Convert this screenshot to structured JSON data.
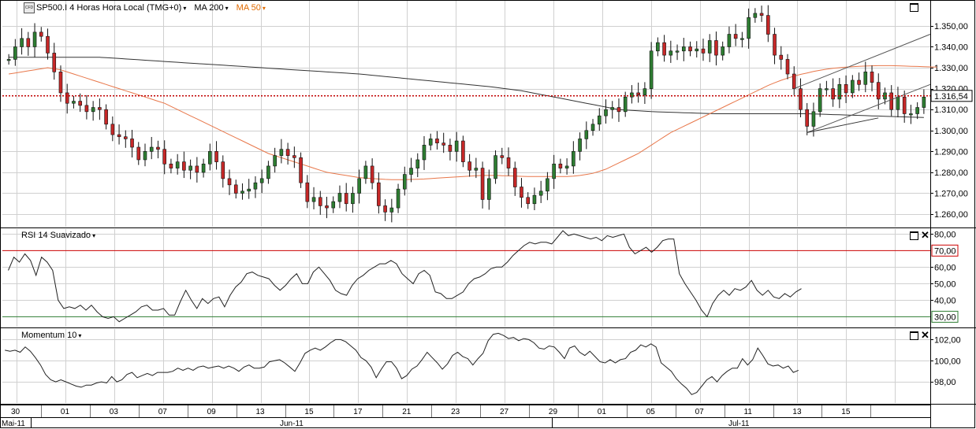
{
  "header": {
    "symbol": "SP500.I 4 Horas Hora Local (TMG+0)",
    "ma200_label": "MA 200",
    "ma50_label": "MA 50",
    "caret": "▾"
  },
  "colors": {
    "up": "#2e7d32",
    "down": "#c62828",
    "ma200": "#333333",
    "ma50": "#e8774a",
    "last_price": "#c00000",
    "grid": "#d0d0d0",
    "rsi_upper": "#cc0000",
    "rsi_lower": "#2e7d32"
  },
  "chart_data": [
    {
      "type": "candlestick",
      "title": "SP500.I 4 Horas Hora Local (TMG+0)",
      "ylim": [
        1254,
        1362
      ],
      "y_ticks": [
        "1.260,00",
        "1.270,00",
        "1.280,00",
        "1.290,00",
        "1.300,00",
        "1.310,00",
        "1.320,00",
        "1.330,00",
        "1.340,00",
        "1.350,00"
      ],
      "y_tick_values": [
        1260,
        1270,
        1280,
        1290,
        1300,
        1310,
        1320,
        1330,
        1340,
        1350
      ],
      "last_price": 1316.54,
      "last_price_label": "1.316,54",
      "close": [
        1334,
        1340,
        1344,
        1340,
        1347,
        1345,
        1337,
        1328,
        1318,
        1313,
        1314,
        1312,
        1309,
        1311,
        1310,
        1303,
        1298,
        1297,
        1296,
        1292,
        1286,
        1290,
        1292,
        1291,
        1284,
        1282,
        1285,
        1281,
        1283,
        1280,
        1284,
        1290,
        1285,
        1277,
        1274,
        1270,
        1271,
        1272,
        1275,
        1277,
        1283,
        1288,
        1291,
        1288,
        1287,
        1275,
        1266,
        1268,
        1264,
        1263,
        1266,
        1270,
        1265,
        1270,
        1277,
        1283,
        1275,
        1264,
        1261,
        1263,
        1272,
        1279,
        1282,
        1286,
        1293,
        1296,
        1294,
        1293,
        1290,
        1295,
        1285,
        1281,
        1282,
        1267,
        1277,
        1288,
        1287,
        1282,
        1273,
        1268,
        1265,
        1269,
        1271,
        1277,
        1284,
        1282,
        1283,
        1290,
        1296,
        1300,
        1303,
        1307,
        1310,
        1311,
        1309,
        1316,
        1318,
        1317,
        1320,
        1338,
        1342,
        1336,
        1338,
        1338,
        1340,
        1338,
        1339,
        1337,
        1343,
        1336,
        1340,
        1346,
        1344,
        1344,
        1354,
        1356,
        1355,
        1346,
        1336,
        1334,
        1327,
        1320,
        1310,
        1302,
        1309,
        1320,
        1320,
        1315,
        1322,
        1318,
        1324,
        1322,
        1328,
        1323,
        1315,
        1318,
        1310,
        1316,
        1308,
        1308,
        1311,
        1316
      ],
      "open": [
        1334,
        1334,
        1340,
        1344,
        1340,
        1347,
        1345,
        1337,
        1328,
        1318,
        1313,
        1314,
        1312,
        1309,
        1311,
        1310,
        1303,
        1298,
        1297,
        1296,
        1292,
        1286,
        1290,
        1292,
        1291,
        1284,
        1282,
        1285,
        1281,
        1283,
        1280,
        1284,
        1290,
        1285,
        1277,
        1274,
        1270,
        1271,
        1272,
        1275,
        1277,
        1283,
        1288,
        1291,
        1288,
        1287,
        1275,
        1266,
        1268,
        1264,
        1263,
        1266,
        1270,
        1265,
        1270,
        1277,
        1283,
        1275,
        1264,
        1261,
        1263,
        1272,
        1279,
        1282,
        1286,
        1293,
        1296,
        1294,
        1293,
        1290,
        1295,
        1285,
        1281,
        1282,
        1267,
        1277,
        1288,
        1287,
        1282,
        1273,
        1268,
        1265,
        1269,
        1271,
        1277,
        1284,
        1282,
        1283,
        1290,
        1296,
        1300,
        1303,
        1307,
        1310,
        1311,
        1309,
        1316,
        1318,
        1317,
        1320,
        1338,
        1342,
        1336,
        1338,
        1338,
        1340,
        1338,
        1339,
        1337,
        1343,
        1336,
        1340,
        1346,
        1344,
        1344,
        1354,
        1356,
        1355,
        1346,
        1336,
        1334,
        1327,
        1320,
        1310,
        1302,
        1309,
        1320,
        1320,
        1315,
        1322,
        1318,
        1324,
        1322,
        1328,
        1323,
        1315,
        1318,
        1310,
        1316,
        1308,
        1308,
        1311
      ],
      "ma200": [
        1335,
        1335,
        1335,
        1335,
        1335,
        1335,
        1335,
        1335,
        1335,
        1335,
        1335,
        1335,
        1335,
        1335,
        1335,
        1334.8,
        1334.6,
        1334.4,
        1334.2,
        1334,
        1333.8,
        1333.6,
        1333.4,
        1333.2,
        1333,
        1332.8,
        1332.6,
        1332.4,
        1332.2,
        1332,
        1331.8,
        1331.6,
        1331.4,
        1331.2,
        1331,
        1330.8,
        1330.6,
        1330.4,
        1330.2,
        1330,
        1329.8,
        1329.6,
        1329.4,
        1329.2,
        1329,
        1328.8,
        1328.6,
        1328.4,
        1328.2,
        1328,
        1327.8,
        1327.6,
        1327.4,
        1327.2,
        1327,
        1326.7,
        1326.4,
        1326.1,
        1325.8,
        1325.5,
        1325.2,
        1324.9,
        1324.6,
        1324.3,
        1324,
        1323.7,
        1323.4,
        1323.1,
        1322.8,
        1322.5,
        1322.2,
        1321.9,
        1321.6,
        1321.3,
        1321,
        1320.6,
        1320.2,
        1319.8,
        1319.4,
        1319,
        1318.4,
        1317.8,
        1317.2,
        1316.6,
        1316,
        1315.4,
        1314.8,
        1314.2,
        1313.6,
        1313,
        1312.4,
        1311.8,
        1311.2,
        1310.6,
        1310,
        1309.8,
        1309.6,
        1309.4,
        1309.2,
        1309,
        1308.9,
        1308.8,
        1308.7,
        1308.6,
        1308.5,
        1308.4,
        1308.3,
        1308.2,
        1308.1,
        1308,
        1308,
        1308,
        1308,
        1308,
        1308,
        1308,
        1308,
        1308,
        1308,
        1308,
        1308,
        1308,
        1308,
        1308,
        1307.9,
        1307.8,
        1307.7,
        1307.6,
        1307.5,
        1307.4,
        1307.3,
        1307.2,
        1307.1,
        1307,
        1306.9,
        1306.8,
        1306.7,
        1306.6,
        1306.5,
        1306.4,
        1306.3,
        1306.2
      ],
      "ma50": [
        1327,
        1327.5,
        1328,
        1328.5,
        1329,
        1329.5,
        1330,
        1329.5,
        1329,
        1328,
        1327,
        1326,
        1325,
        1324,
        1323,
        1322,
        1321,
        1320,
        1319,
        1318,
        1317,
        1316,
        1315,
        1314,
        1313,
        1311.5,
        1310,
        1308.5,
        1307,
        1305.5,
        1304,
        1302.5,
        1301,
        1299.5,
        1298,
        1296.5,
        1295,
        1293.5,
        1292,
        1290.5,
        1289,
        1288,
        1287,
        1286,
        1285,
        1284,
        1283,
        1282,
        1281,
        1280,
        1279.5,
        1279,
        1278.5,
        1278,
        1277.5,
        1277.2,
        1277,
        1276.8,
        1276.6,
        1276.5,
        1276.5,
        1276.5,
        1276.6,
        1276.7,
        1276.8,
        1277,
        1277.2,
        1277.4,
        1277.6,
        1277.8,
        1278,
        1278.2,
        1278.4,
        1278.5,
        1278.5,
        1278.5,
        1278.4,
        1278.3,
        1278.2,
        1278.1,
        1278,
        1278,
        1278,
        1278,
        1278,
        1278,
        1278,
        1278.2,
        1278.5,
        1279,
        1279.5,
        1280.5,
        1281.5,
        1283,
        1284.5,
        1286,
        1287.5,
        1289,
        1291,
        1293,
        1295,
        1297,
        1299,
        1300.5,
        1302,
        1303.5,
        1305,
        1306.5,
        1308,
        1309.5,
        1311,
        1312.5,
        1314,
        1315.5,
        1317,
        1318.5,
        1320,
        1321.5,
        1322.8,
        1324,
        1325,
        1326,
        1326.8,
        1327.5,
        1328.2,
        1328.8,
        1329.3,
        1329.7,
        1330,
        1330.3,
        1330.5,
        1330.7,
        1330.8,
        1330.9,
        1331,
        1331,
        1331,
        1330.9,
        1330.8,
        1330.7,
        1330.6,
        1330.5,
        1330.4,
        1330.3
      ],
      "trendlines": [
        {
          "x1_bar": 121,
          "y1": 1320,
          "x2_bar": 149,
          "y2": 1346,
          "color": "#555555"
        },
        {
          "x1_bar": 123,
          "y1": 1299,
          "x2_bar": 155,
          "y2": 1322,
          "color": "#555555"
        },
        {
          "x1_bar": 123,
          "y1": 1299,
          "x2_bar": 134,
          "y2": 1306,
          "color": "#333333"
        }
      ]
    },
    {
      "type": "line",
      "title": "RSI 14 Suavizado",
      "ylim": [
        24,
        83
      ],
      "y_ticks": [
        "40,00",
        "50,00",
        "60,00",
        "80,00"
      ],
      "y_tick_values": [
        40,
        50,
        60,
        80
      ],
      "levels": [
        {
          "value": 70,
          "label": "70,00",
          "color": "#cc0000"
        },
        {
          "value": 30,
          "label": "30,00",
          "color": "#2e7d32"
        }
      ],
      "values": [
        58,
        66,
        63,
        68,
        64,
        55,
        66,
        63,
        58,
        40,
        35,
        36,
        35,
        37,
        34,
        37,
        33,
        30,
        29,
        30,
        27,
        29,
        31,
        33,
        36,
        37,
        34,
        34,
        35,
        31,
        31,
        39,
        46,
        40,
        35,
        41,
        38,
        41,
        42,
        36,
        43,
        48,
        51,
        56,
        57,
        55,
        54,
        53,
        49,
        46,
        49,
        53,
        56,
        50,
        50,
        57,
        60,
        56,
        52,
        46,
        44,
        43,
        49,
        53,
        55,
        58,
        60,
        62,
        62,
        64,
        62,
        56,
        53,
        50,
        56,
        58,
        55,
        45,
        44,
        41,
        41,
        43,
        45,
        50,
        53,
        54,
        56,
        59,
        60,
        60,
        63,
        67,
        70,
        73,
        75,
        74,
        75,
        75,
        74,
        78,
        82,
        79,
        80,
        79,
        78,
        77,
        78,
        76,
        79,
        78,
        79,
        80,
        72,
        68,
        70,
        72,
        69,
        72,
        76,
        77,
        77,
        56,
        50,
        45,
        40,
        34,
        30,
        38,
        43,
        46,
        43,
        47,
        46,
        48,
        52,
        46,
        43,
        46,
        42,
        41,
        44,
        42,
        45,
        47
      ]
    },
    {
      "type": "line",
      "title": "Momentum 10",
      "ylim": [
        96,
        103
      ],
      "y_ticks": [
        "98,00",
        "100,00",
        "102,00"
      ],
      "y_tick_values": [
        98,
        100,
        102
      ],
      "values": [
        101.0,
        100.9,
        101.0,
        100.8,
        101.3,
        100.9,
        100.3,
        99.6,
        98.7,
        98.2,
        98.0,
        98.2,
        98.0,
        97.8,
        97.6,
        97.5,
        97.7,
        97.7,
        97.9,
        98.0,
        97.9,
        98.5,
        98.0,
        98.2,
        98.7,
        98.9,
        98.4,
        98.6,
        98.8,
        98.6,
        98.9,
        98.9,
        98.9,
        99.0,
        99.3,
        99.1,
        99.3,
        99.1,
        99.4,
        99.5,
        99.3,
        99.4,
        99.5,
        99.3,
        99.5,
        99.3,
        99.0,
        99.4,
        99.6,
        99.3,
        99.3,
        99.4,
        99.9,
        100.0,
        100.1,
        99.8,
        99.4,
        99.0,
        99.8,
        100.7,
        101.0,
        101.2,
        101.0,
        101.3,
        101.7,
        102.0,
        102.0,
        101.8,
        101.4,
        101.0,
        100.3,
        100.0,
        99.4,
        98.4,
        99.2,
        99.9,
        99.9,
        99.3,
        98.3,
        98.6,
        99.2,
        99.5,
        100.1,
        100.8,
        100.3,
        99.8,
        99.2,
        99.7,
        100.5,
        100.8,
        100.4,
        100.2,
        99.6,
        100.2,
        100.7,
        101.9,
        102.5,
        102.6,
        102.4,
        102.1,
        102.2,
        101.9,
        102.1,
        102.0,
        101.7,
        101.2,
        101.1,
        101.4,
        101.3,
        100.8,
        100.2,
        101.2,
        101.4,
        100.8,
        100.5,
        100.9,
        100.4,
        99.9,
        99.8,
        100.1,
        99.8,
        100.1,
        100.2,
        100.8,
        101.0,
        101.5,
        101.3,
        101.6,
        101.3,
        99.8,
        99.4,
        99.0,
        98.3,
        97.8,
        97.4,
        96.8,
        97.0,
        97.6,
        98.2,
        98.5,
        98.0,
        98.6,
        99.0,
        99.3,
        99.3,
        100.2,
        99.6,
        100.1,
        101.2,
        100.5,
        99.7,
        99.5,
        99.6,
        99.3,
        99.5,
        98.9,
        99.1
      ]
    }
  ],
  "x_axis": {
    "day_labels": [
      "30",
      "01",
      "03",
      "07",
      "09",
      "13",
      "15",
      "17",
      "21",
      "23",
      "27",
      "29",
      "01",
      "05",
      "07",
      "11",
      "13",
      "15"
    ],
    "month_labels": [
      "Mai-11",
      "Jun-11",
      "Jul-11"
    ]
  },
  "pane_titles": {
    "rsi": "RSI 14 Suavizado",
    "momentum": "Momentum 10"
  }
}
